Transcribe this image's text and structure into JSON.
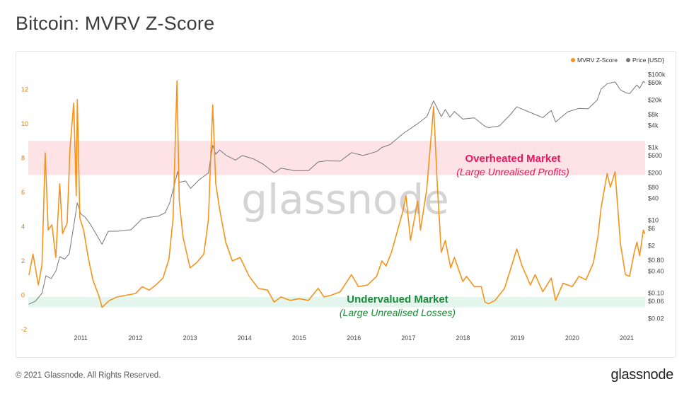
{
  "page": {
    "title": "Bitcoin: MVRV Z-Score",
    "footer_copyright": "© 2021 Glassnode. All Rights Reserved.",
    "footer_brand": "glassnode",
    "watermark": "glassnode"
  },
  "zones": [
    {
      "name": "overheated",
      "label": "Overheated Market",
      "sublabel": "(Large Unrealised Profits)",
      "y_from": 7,
      "y_to": 9,
      "fill": "#fde3e6",
      "text_color": "#e8175d"
    },
    {
      "name": "undervalued",
      "label": "Undervalued Market",
      "sublabel": "(Large Unrealised Losses)",
      "y_from": -0.7,
      "y_to": -0.1,
      "fill": "#e3f5ec",
      "text_color": "#1a8c3a"
    }
  ],
  "chart_data": {
    "type": "line",
    "x_type": "date",
    "xlim": [
      "2010-07-15",
      "2021-11-01"
    ],
    "x_tick_labels": [
      "2011",
      "2012",
      "2013",
      "2014",
      "2015",
      "2016",
      "2017",
      "2018",
      "2019",
      "2020",
      "2021"
    ],
    "ylim_left": [
      -2,
      13.5
    ],
    "y_left_ticks": [
      -2,
      0,
      2,
      4,
      6,
      8,
      10,
      12
    ],
    "y_right_scale": "log",
    "ylim_right": [
      0.01,
      200000
    ],
    "y_right_ticks": [
      {
        "value": 0.02,
        "label": "$0.02"
      },
      {
        "value": 0.06,
        "label": "$0.06"
      },
      {
        "value": 0.1,
        "label": "$0.10"
      },
      {
        "value": 0.4,
        "label": "$0.40"
      },
      {
        "value": 0.8,
        "label": "$0.80"
      },
      {
        "value": 2,
        "label": "$2"
      },
      {
        "value": 6,
        "label": "$6"
      },
      {
        "value": 10,
        "label": "$10"
      },
      {
        "value": 40,
        "label": "$40"
      },
      {
        "value": 80,
        "label": "$80"
      },
      {
        "value": 200,
        "label": "$200"
      },
      {
        "value": 600,
        "label": "$600"
      },
      {
        "value": 1000,
        "label": "$1k"
      },
      {
        "value": 4000,
        "label": "$4k"
      },
      {
        "value": 8000,
        "label": "$8k"
      },
      {
        "value": 20000,
        "label": "$20k"
      },
      {
        "value": 60000,
        "label": "$60k"
      },
      {
        "value": 100000,
        "label": "$100k"
      }
    ],
    "legend": {
      "position": "top-right",
      "items": [
        {
          "name": "MVRV Z-Score",
          "color": "#f7931a"
        },
        {
          "name": "Price [USD]",
          "color": "#777777"
        }
      ]
    },
    "series": [
      {
        "name": "MVRV Z-Score",
        "axis": "left",
        "color": "#f7931a",
        "points": [
          [
            "2010-07-20",
            1.2
          ],
          [
            "2010-08-15",
            2.4
          ],
          [
            "2010-09-20",
            0.6
          ],
          [
            "2010-10-15",
            1.8
          ],
          [
            "2010-11-05",
            8.3
          ],
          [
            "2010-11-25",
            3.8
          ],
          [
            "2010-12-20",
            4.1
          ],
          [
            "2011-01-15",
            2.2
          ],
          [
            "2011-02-10",
            6.5
          ],
          [
            "2011-03-01",
            3.6
          ],
          [
            "2011-04-01",
            4.2
          ],
          [
            "2011-04-20",
            8.6
          ],
          [
            "2011-05-15",
            11.2
          ],
          [
            "2011-06-01",
            5.8
          ],
          [
            "2011-06-08",
            11.4
          ],
          [
            "2011-06-25",
            4.5
          ],
          [
            "2011-07-20",
            3.8
          ],
          [
            "2011-08-20",
            2.2
          ],
          [
            "2011-09-20",
            0.9
          ],
          [
            "2011-11-01",
            -0.1
          ],
          [
            "2011-11-20",
            -0.7
          ],
          [
            "2012-01-10",
            -0.3
          ],
          [
            "2012-03-01",
            -0.1
          ],
          [
            "2012-05-01",
            0.0
          ],
          [
            "2012-07-01",
            0.1
          ],
          [
            "2012-08-15",
            0.5
          ],
          [
            "2012-10-01",
            0.3
          ],
          [
            "2012-11-15",
            0.6
          ],
          [
            "2013-01-01",
            1.0
          ],
          [
            "2013-02-10",
            2.1
          ],
          [
            "2013-03-10",
            4.5
          ],
          [
            "2013-04-05",
            12.5
          ],
          [
            "2013-04-20",
            5.5
          ],
          [
            "2013-05-15",
            3.4
          ],
          [
            "2013-07-01",
            1.6
          ],
          [
            "2013-08-15",
            1.9
          ],
          [
            "2013-10-01",
            2.4
          ],
          [
            "2013-11-01",
            4.4
          ],
          [
            "2013-11-30",
            11.1
          ],
          [
            "2013-12-20",
            6.5
          ],
          [
            "2014-01-15",
            5.0
          ],
          [
            "2014-02-25",
            3.1
          ],
          [
            "2014-04-10",
            2.0
          ],
          [
            "2014-06-01",
            2.2
          ],
          [
            "2014-08-01",
            1.1
          ],
          [
            "2014-10-01",
            0.4
          ],
          [
            "2014-12-01",
            0.3
          ],
          [
            "2015-01-15",
            -0.4
          ],
          [
            "2015-03-01",
            -0.1
          ],
          [
            "2015-05-01",
            -0.3
          ],
          [
            "2015-07-01",
            -0.2
          ],
          [
            "2015-09-01",
            -0.3
          ],
          [
            "2015-11-05",
            0.4
          ],
          [
            "2015-12-15",
            -0.1
          ],
          [
            "2016-02-01",
            0.0
          ],
          [
            "2016-04-01",
            0.2
          ],
          [
            "2016-06-15",
            1.2
          ],
          [
            "2016-08-01",
            0.5
          ],
          [
            "2016-10-01",
            0.6
          ],
          [
            "2016-12-01",
            1.1
          ],
          [
            "2017-01-05",
            2.0
          ],
          [
            "2017-02-01",
            1.7
          ],
          [
            "2017-03-10",
            2.5
          ],
          [
            "2017-05-25",
            4.9
          ],
          [
            "2017-06-15",
            5.8
          ],
          [
            "2017-07-15",
            3.2
          ],
          [
            "2017-09-01",
            5.5
          ],
          [
            "2017-09-20",
            3.8
          ],
          [
            "2017-11-01",
            6.2
          ],
          [
            "2017-12-17",
            11.0
          ],
          [
            "2018-01-10",
            6.5
          ],
          [
            "2018-02-06",
            2.5
          ],
          [
            "2018-03-05",
            3.2
          ],
          [
            "2018-04-10",
            1.6
          ],
          [
            "2018-05-05",
            2.2
          ],
          [
            "2018-06-30",
            0.8
          ],
          [
            "2018-07-25",
            1.1
          ],
          [
            "2018-09-15",
            0.5
          ],
          [
            "2018-11-01",
            0.5
          ],
          [
            "2018-11-25",
            -0.4
          ],
          [
            "2018-12-20",
            -0.5
          ],
          [
            "2019-02-01",
            -0.3
          ],
          [
            "2019-04-05",
            0.4
          ],
          [
            "2019-05-15",
            1.5
          ],
          [
            "2019-06-26",
            2.7
          ],
          [
            "2019-08-01",
            1.7
          ],
          [
            "2019-09-25",
            0.6
          ],
          [
            "2019-10-27",
            1.2
          ],
          [
            "2019-12-17",
            0.2
          ],
          [
            "2020-02-12",
            1.0
          ],
          [
            "2020-03-12",
            -0.3
          ],
          [
            "2020-05-01",
            0.7
          ],
          [
            "2020-07-01",
            0.5
          ],
          [
            "2020-08-15",
            1.1
          ],
          [
            "2020-10-01",
            0.9
          ],
          [
            "2020-11-20",
            1.9
          ],
          [
            "2020-12-20",
            3.4
          ],
          [
            "2021-01-10",
            5.1
          ],
          [
            "2021-02-20",
            7.1
          ],
          [
            "2021-03-13",
            6.3
          ],
          [
            "2021-04-14",
            7.2
          ],
          [
            "2021-05-20",
            3.0
          ],
          [
            "2021-06-22",
            1.2
          ],
          [
            "2021-07-20",
            1.1
          ],
          [
            "2021-08-20",
            2.5
          ],
          [
            "2021-09-07",
            3.1
          ],
          [
            "2021-09-25",
            2.3
          ],
          [
            "2021-10-20",
            3.8
          ],
          [
            "2021-10-30",
            3.6
          ]
        ]
      },
      {
        "name": "Price [USD]",
        "axis": "right",
        "color": "#777777",
        "points": [
          [
            "2010-07-20",
            0.05
          ],
          [
            "2010-09-01",
            0.06
          ],
          [
            "2010-10-15",
            0.1
          ],
          [
            "2010-11-10",
            0.3
          ],
          [
            "2010-12-15",
            0.25
          ],
          [
            "2011-01-15",
            0.4
          ],
          [
            "2011-02-10",
            1.0
          ],
          [
            "2011-03-15",
            0.85
          ],
          [
            "2011-04-15",
            1.2
          ],
          [
            "2011-05-15",
            7
          ],
          [
            "2011-06-08",
            30
          ],
          [
            "2011-07-01",
            15
          ],
          [
            "2011-08-01",
            12
          ],
          [
            "2011-09-01",
            8
          ],
          [
            "2011-10-01",
            5
          ],
          [
            "2011-11-20",
            2.2
          ],
          [
            "2012-01-01",
            5
          ],
          [
            "2012-03-01",
            5
          ],
          [
            "2012-06-01",
            5.5
          ],
          [
            "2012-08-15",
            11
          ],
          [
            "2012-10-01",
            12
          ],
          [
            "2012-12-01",
            13
          ],
          [
            "2013-01-15",
            16
          ],
          [
            "2013-02-15",
            30
          ],
          [
            "2013-04-10",
            220
          ],
          [
            "2013-04-20",
            110
          ],
          [
            "2013-06-01",
            120
          ],
          [
            "2013-07-05",
            75
          ],
          [
            "2013-09-01",
            130
          ],
          [
            "2013-11-01",
            200
          ],
          [
            "2013-11-30",
            1150
          ],
          [
            "2013-12-20",
            650
          ],
          [
            "2014-01-15",
            850
          ],
          [
            "2014-03-01",
            600
          ],
          [
            "2014-05-01",
            450
          ],
          [
            "2014-06-15",
            600
          ],
          [
            "2014-09-01",
            480
          ],
          [
            "2014-11-01",
            350
          ],
          [
            "2015-01-15",
            200
          ],
          [
            "2015-03-01",
            270
          ],
          [
            "2015-06-01",
            230
          ],
          [
            "2015-09-01",
            230
          ],
          [
            "2015-11-05",
            400
          ],
          [
            "2016-01-01",
            430
          ],
          [
            "2016-04-01",
            420
          ],
          [
            "2016-06-15",
            720
          ],
          [
            "2016-09-01",
            600
          ],
          [
            "2016-12-01",
            770
          ],
          [
            "2017-01-05",
            1000
          ],
          [
            "2017-03-01",
            1200
          ],
          [
            "2017-06-01",
            2500
          ],
          [
            "2017-09-01",
            4500
          ],
          [
            "2017-11-01",
            7000
          ],
          [
            "2017-12-17",
            19000
          ],
          [
            "2018-02-06",
            7000
          ],
          [
            "2018-03-05",
            11000
          ],
          [
            "2018-04-05",
            6800
          ],
          [
            "2018-05-05",
            9700
          ],
          [
            "2018-06-30",
            6000
          ],
          [
            "2018-09-15",
            6500
          ],
          [
            "2018-11-25",
            3800
          ],
          [
            "2018-12-20",
            3500
          ],
          [
            "2019-03-01",
            3900
          ],
          [
            "2019-05-15",
            8000
          ],
          [
            "2019-06-26",
            13000
          ],
          [
            "2019-09-01",
            10000
          ],
          [
            "2019-12-17",
            6600
          ],
          [
            "2020-02-12",
            10300
          ],
          [
            "2020-03-12",
            5000
          ],
          [
            "2020-06-01",
            9500
          ],
          [
            "2020-08-15",
            11800
          ],
          [
            "2020-10-15",
            11500
          ],
          [
            "2020-12-15",
            20000
          ],
          [
            "2021-01-10",
            40000
          ],
          [
            "2021-02-20",
            56000
          ],
          [
            "2021-04-14",
            63000
          ],
          [
            "2021-05-20",
            38000
          ],
          [
            "2021-06-22",
            32000
          ],
          [
            "2021-07-20",
            30000
          ],
          [
            "2021-09-07",
            52000
          ],
          [
            "2021-09-25",
            42000
          ],
          [
            "2021-10-20",
            65000
          ],
          [
            "2021-10-30",
            61000
          ]
        ]
      }
    ]
  }
}
